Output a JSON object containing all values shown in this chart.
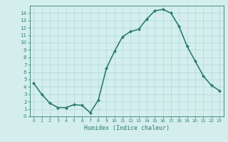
{
  "x": [
    0,
    1,
    2,
    3,
    4,
    5,
    6,
    7,
    8,
    9,
    10,
    11,
    12,
    13,
    14,
    15,
    16,
    17,
    18,
    19,
    20,
    21,
    22,
    23
  ],
  "y": [
    4.5,
    3.0,
    1.8,
    1.2,
    1.2,
    1.6,
    1.5,
    0.5,
    2.2,
    6.5,
    8.8,
    10.8,
    11.5,
    11.8,
    13.2,
    14.3,
    14.5,
    14.0,
    12.2,
    9.5,
    7.5,
    5.5,
    4.2,
    3.5
  ],
  "xlabel": "Humidex (Indice chaleur)",
  "ylim": [
    0,
    15
  ],
  "xlim": [
    -0.5,
    23.5
  ],
  "xticks": [
    0,
    1,
    2,
    3,
    4,
    5,
    6,
    7,
    8,
    9,
    10,
    11,
    12,
    13,
    14,
    15,
    16,
    17,
    18,
    19,
    20,
    21,
    22,
    23
  ],
  "yticks": [
    0,
    1,
    2,
    3,
    4,
    5,
    6,
    7,
    8,
    9,
    10,
    11,
    12,
    13,
    14
  ],
  "line_color": "#2d7d6e",
  "marker": "D",
  "bg_color": "#d4eeee",
  "grid_color": "#aed8d8",
  "marker_size": 2,
  "line_width": 1.2
}
